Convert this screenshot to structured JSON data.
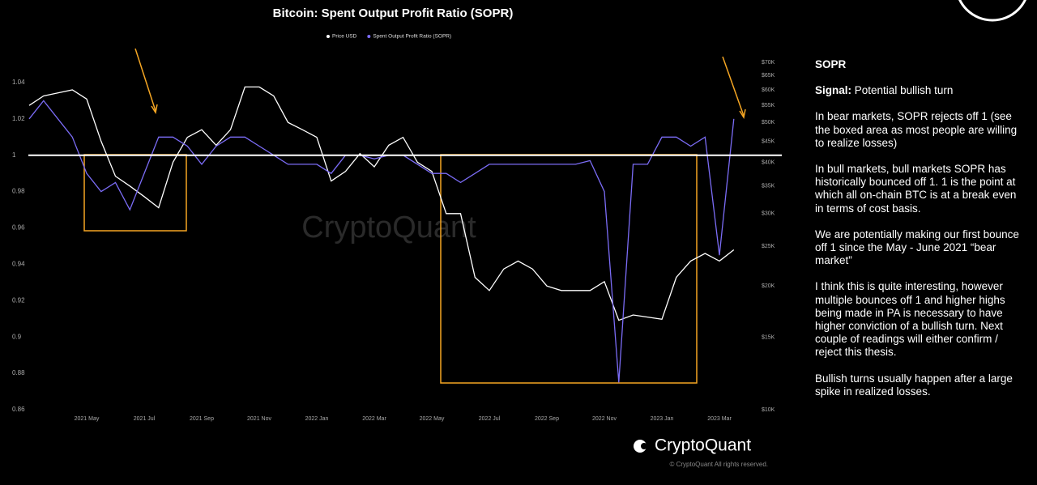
{
  "chart_data": {
    "type": "line",
    "title": "Bitcoin: Spent Output Profit Ratio (SOPR)",
    "watermark": "CryptoQuant",
    "brand": "CryptoQuant",
    "copyright": "© CryptoQuant All rights reserved.",
    "categories": [
      null,
      null,
      null,
      null,
      "2021 May",
      null,
      null,
      null,
      "2021 Jul",
      null,
      null,
      null,
      "2021 Sep",
      null,
      null,
      null,
      "2021 Nov",
      null,
      null,
      null,
      "2022 Jan",
      null,
      null,
      null,
      "2022 Mar",
      null,
      null,
      null,
      "2022 May",
      null,
      null,
      null,
      "2022 Jul",
      null,
      null,
      null,
      "2022 Sep",
      null,
      null,
      null,
      "2022 Nov",
      null,
      null,
      null,
      "2023 Jan",
      null,
      null,
      null,
      "2023 Mar",
      null
    ],
    "series": [
      {
        "name": "Price USD",
        "color": "#ffffff",
        "axis": "y2",
        "values": [
          55000,
          58000,
          59000,
          60000,
          57000,
          45000,
          37000,
          35000,
          33000,
          31000,
          40000,
          46000,
          48000,
          44000,
          48000,
          61000,
          61000,
          58000,
          50000,
          48000,
          46000,
          36000,
          38000,
          42000,
          39000,
          44000,
          46000,
          40000,
          38000,
          30000,
          30000,
          21000,
          19500,
          22000,
          23000,
          22000,
          20000,
          19500,
          19500,
          19500,
          20500,
          16500,
          17000,
          16800,
          16600,
          21000,
          23000,
          24000,
          23000,
          24500
        ]
      },
      {
        "name": "Spent Output Profit Ratio (SOPR)",
        "color": "#7b6cf6",
        "values": [
          1.02,
          1.03,
          1.02,
          1.01,
          0.99,
          0.98,
          0.985,
          0.97,
          0.99,
          1.01,
          1.01,
          1.005,
          0.995,
          1.005,
          1.01,
          1.01,
          1.005,
          1.0,
          0.995,
          0.995,
          0.995,
          0.99,
          1.0,
          1.0,
          0.998,
          1.0,
          1.0,
          0.995,
          0.99,
          0.99,
          0.985,
          0.99,
          0.995,
          0.995,
          0.995,
          0.995,
          0.995,
          0.995,
          0.995,
          0.997,
          0.98,
          0.875,
          0.995,
          0.995,
          1.01,
          1.01,
          1.005,
          1.01,
          0.945,
          1.02
        ]
      }
    ],
    "reference_line": 1,
    "ylim": [
      0.86,
      1.056
    ],
    "yticks": [
      0.86,
      0.88,
      0.9,
      0.92,
      0.94,
      0.96,
      0.98,
      1,
      1.02,
      1.04
    ],
    "y2lim": [
      10000,
      73600
    ],
    "y2_log": true,
    "y2ticks": [
      {
        "value": 10000,
        "label": "$10K"
      },
      {
        "value": 15000,
        "label": "$15K"
      },
      {
        "value": 20000,
        "label": "$20K"
      },
      {
        "value": 25000,
        "label": "$25K"
      },
      {
        "value": 30000,
        "label": "$30K"
      },
      {
        "value": 35000,
        "label": "$35K"
      },
      {
        "value": 40000,
        "label": "$40K"
      },
      {
        "value": 45000,
        "label": "$45K"
      },
      {
        "value": 50000,
        "label": "$50K"
      },
      {
        "value": 55000,
        "label": "$55K"
      },
      {
        "value": 60000,
        "label": "$60K"
      },
      {
        "value": 65000,
        "label": "$65K"
      },
      {
        "value": 70000,
        "label": "$70K"
      }
    ],
    "grid": false
  },
  "sidebar": {
    "heading": "SOPR",
    "signal_label": "Signal:",
    "signal": "Potential bullish turn",
    "paragraphs": [
      "In bear markets, SOPR rejects off 1 (see the boxed area as most people are willing to realize losses)",
      "In bull markets, bull markets SOPR has historically bounced off 1. 1 is the point at which all on-chain BTC is at a break even in terms of cost basis.",
      "We are potentially making our first bounce off 1 since the May - June 2021 “bear market”",
      "I think this is quite interesting, however multiple bounces off 1 and higher highs being made in PA is necessary to have higher conviction of a bullish turn. Next couple of readings will either confirm / reject this thesis.",
      "Bullish turns usually happen after a large spike in realized losses."
    ]
  }
}
